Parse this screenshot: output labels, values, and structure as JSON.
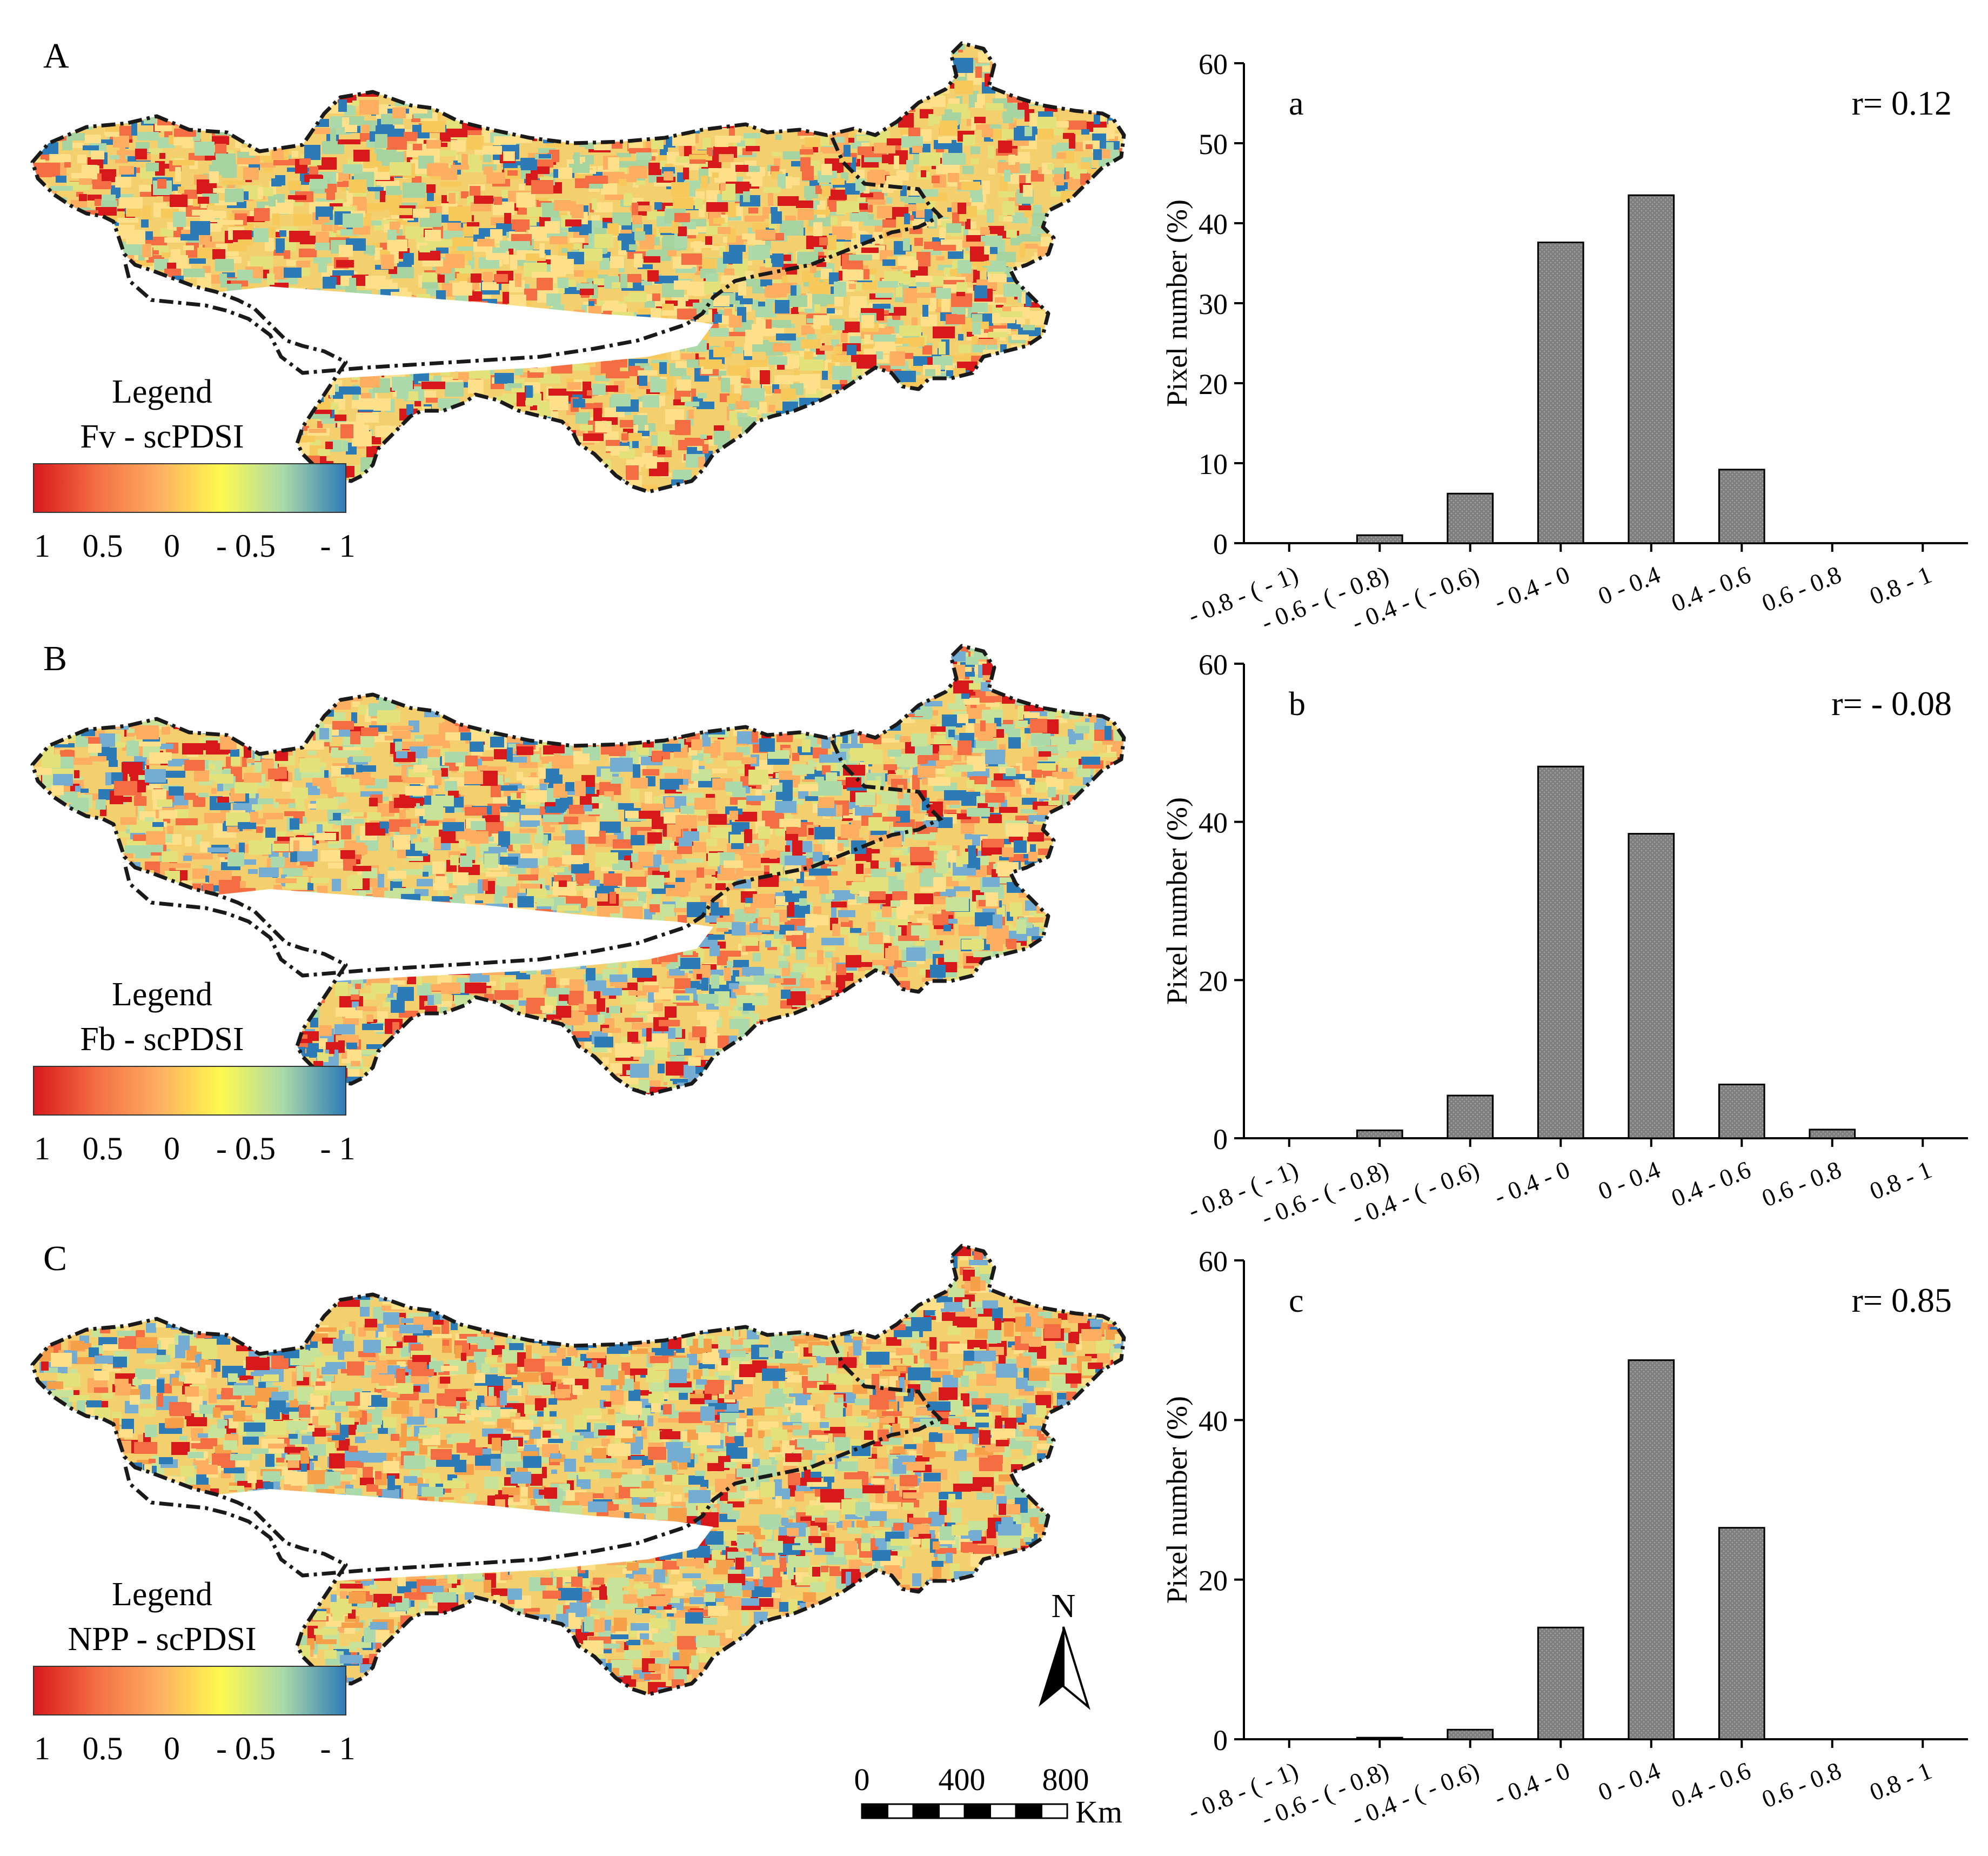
{
  "colorbar": {
    "stops": [
      "#d7191c",
      "#f46d43",
      "#fdae61",
      "#fef94e",
      "#abd9a9",
      "#2c7bb6"
    ],
    "ticks": [
      "1",
      "0.5",
      "0",
      "- 0.5",
      "- 1"
    ]
  },
  "maps": [
    {
      "panel_label": "A",
      "legend_title": "Legend",
      "legend_var": "Fv - scPDSI"
    },
    {
      "panel_label": "B",
      "legend_title": "Legend",
      "legend_var": "Fb - scPDSI"
    },
    {
      "panel_label": "C",
      "legend_title": "Legend",
      "legend_var": "NPP - scPDSI"
    }
  ],
  "north_arrow": {
    "label": "N"
  },
  "scale_bar": {
    "ticks": [
      "0",
      "400",
      "800"
    ],
    "unit": "Km"
  },
  "chart_data": [
    {
      "type": "bar",
      "panel_label": "a",
      "annotation": "r= 0.12",
      "ylabel": "Pixel number (%)",
      "ylim": [
        0,
        60
      ],
      "yticks": [
        "0",
        "10",
        "20",
        "30",
        "40",
        "50",
        "60"
      ],
      "categories": [
        "- 0.8 - ( - 1)",
        "- 0.6 - ( - 0.8)",
        "- 0.4 - ( - 0.6)",
        "- 0.4 - 0",
        "0 - 0.4",
        "0.4 - 0.6",
        "0.6 - 0.8",
        "0.8 - 1"
      ],
      "values": [
        0,
        1.0,
        6.2,
        37.6,
        43.5,
        9.2,
        0,
        0
      ]
    },
    {
      "type": "bar",
      "panel_label": "b",
      "annotation": "r= - 0.08",
      "ylabel": "Pixel number (%)",
      "ylim": [
        0,
        60
      ],
      "yticks": [
        "0",
        "20",
        "40",
        "60"
      ],
      "categories": [
        "- 0.8 - ( - 1)",
        "- 0.6 - ( - 0.8)",
        "- 0.4 - ( - 0.6)",
        "- 0.4 - 0",
        "0 - 0.4",
        "0.4 - 0.6",
        "0.6 - 0.8",
        "0.8 - 1"
      ],
      "values": [
        0,
        1.0,
        5.4,
        47.0,
        38.5,
        6.8,
        1.1,
        0
      ]
    },
    {
      "type": "bar",
      "panel_label": "c",
      "annotation": "r= 0.85",
      "ylabel": "Pixel number (%)",
      "ylim": [
        0,
        60
      ],
      "yticks": [
        "0",
        "20",
        "40",
        "60"
      ],
      "categories": [
        "- 0.8 - ( - 1)",
        "- 0.6 - ( - 0.8)",
        "- 0.4 - ( - 0.6)",
        "- 0.4 - 0",
        "0 - 0.4",
        "0.4 - 0.6",
        "0.6 - 0.8",
        "0.8 - 1"
      ],
      "values": [
        0,
        0.2,
        1.2,
        14.0,
        47.5,
        26.5,
        0,
        0
      ]
    }
  ]
}
